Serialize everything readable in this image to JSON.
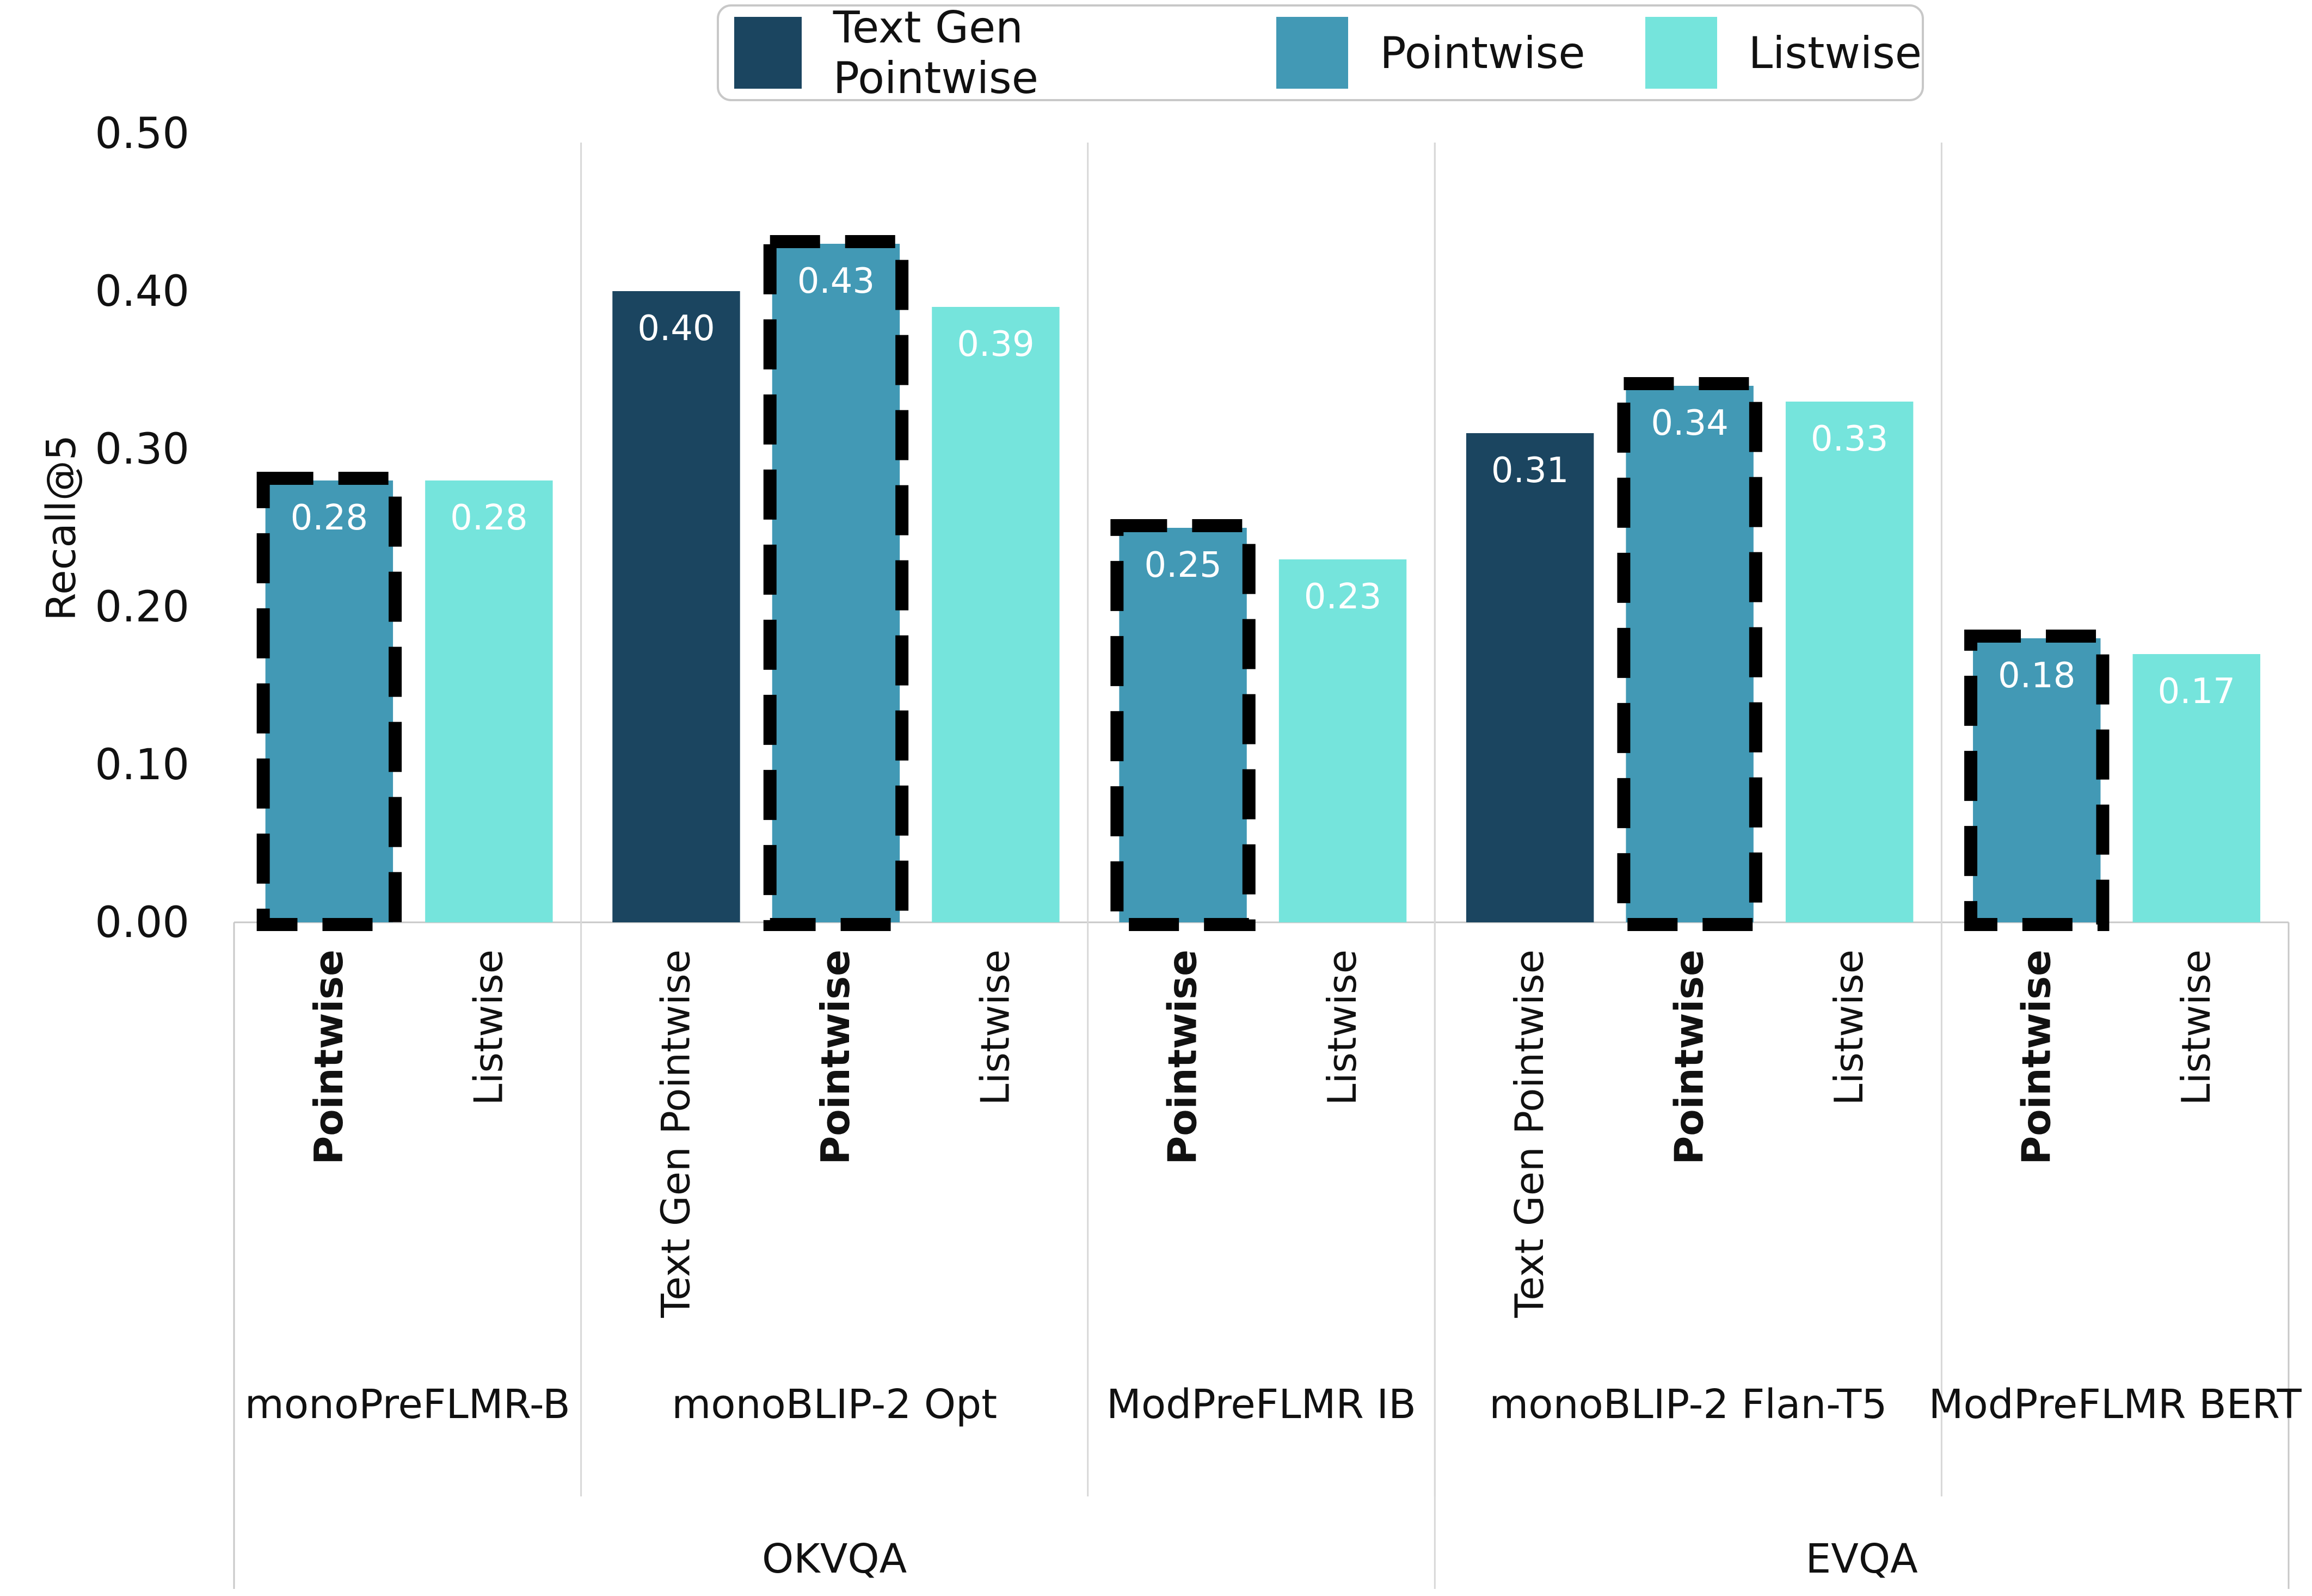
{
  "chart_data": {
    "type": "bar",
    "ylabel": "Recall@5",
    "ylim": [
      0,
      0.5
    ],
    "yticks": [
      "0.00",
      "0.10",
      "0.20",
      "0.30",
      "0.40",
      "0.50"
    ],
    "grid": false,
    "legend": {
      "placement": "top-center",
      "entries": [
        {
          "name": "Text Gen Pointwise",
          "color": "#1b4560"
        },
        {
          "name": "Pointwise",
          "color": "#4299b5"
        },
        {
          "name": "Listwise",
          "color": "#75e4dc"
        }
      ]
    },
    "datasets": [
      {
        "name": "OKVQA",
        "models": [
          {
            "name": "monoPreFLMR-B",
            "bars": [
              {
                "label": "Pointwise",
                "series": "Pointwise",
                "value": 0.28,
                "value_label": "0.28",
                "highlight": true
              },
              {
                "label": "Listwise",
                "series": "Listwise",
                "value": 0.28,
                "value_label": "0.28",
                "highlight": false
              }
            ]
          },
          {
            "name": "monoBLIP-2 Opt",
            "bars": [
              {
                "label": "Text Gen Pointwise",
                "series": "Text Gen Pointwise",
                "value": 0.4,
                "value_label": "0.40",
                "highlight": false
              },
              {
                "label": "Pointwise",
                "series": "Pointwise",
                "value": 0.43,
                "value_label": "0.43",
                "highlight": true
              },
              {
                "label": "Listwise",
                "series": "Listwise",
                "value": 0.39,
                "value_label": "0.39",
                "highlight": false
              }
            ]
          },
          {
            "name": "ModPreFLMR IB",
            "bars": [
              {
                "label": "Pointwise",
                "series": "Pointwise",
                "value": 0.25,
                "value_label": "0.25",
                "highlight": true
              },
              {
                "label": "Listwise",
                "series": "Listwise",
                "value": 0.23,
                "value_label": "0.23",
                "highlight": false
              }
            ]
          }
        ]
      },
      {
        "name": "EVQA",
        "models": [
          {
            "name": "monoBLIP-2 Flan-T5",
            "bars": [
              {
                "label": "Text Gen Pointwise",
                "series": "Text Gen Pointwise",
                "value": 0.31,
                "value_label": "0.31",
                "highlight": false
              },
              {
                "label": "Pointwise",
                "series": "Pointwise",
                "value": 0.34,
                "value_label": "0.34",
                "highlight": true
              },
              {
                "label": "Listwise",
                "series": "Listwise",
                "value": 0.33,
                "value_label": "0.33",
                "highlight": false
              }
            ]
          },
          {
            "name": "ModPreFLMR BERT",
            "bars": [
              {
                "label": "Pointwise",
                "series": "Pointwise",
                "value": 0.18,
                "value_label": "0.18",
                "highlight": true
              },
              {
                "label": "Listwise",
                "series": "Listwise",
                "value": 0.17,
                "value_label": "0.17",
                "highlight": false
              }
            ]
          }
        ]
      }
    ]
  }
}
